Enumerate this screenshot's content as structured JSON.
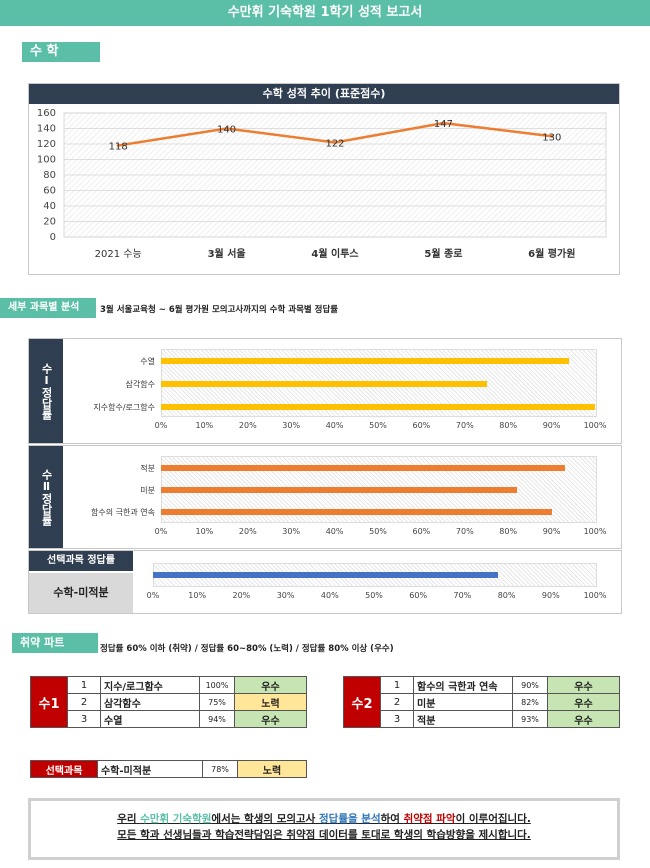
{
  "header": {
    "title": "수만휘 기숙학원 1학기 성적 보고서"
  },
  "math_tag": "수 학",
  "chart_data": {
    "type": "line",
    "title": "수학 성적 추이 (표준점수)",
    "categories": [
      "2021 수능",
      "3월 서울",
      "4월 이투스",
      "5월 종로",
      "6월 평가원"
    ],
    "values": [
      118,
      140,
      122,
      147,
      130
    ],
    "ylim": [
      0,
      160
    ],
    "yticks": [
      "0",
      "20",
      "40",
      "60",
      "80",
      "100",
      "120",
      "140",
      "160"
    ],
    "line_color": "#ed7d31",
    "grid": true
  },
  "detail": {
    "tag": "세부 과목별 분석",
    "desc": "3월 서울교육청 ~ 6월 평가원 모의고사까지의 수학 과목별 정답률",
    "pct_ticks": [
      "0%",
      "10%",
      "20%",
      "30%",
      "40%",
      "50%",
      "60%",
      "70%",
      "80%",
      "90%",
      "100%"
    ],
    "su1": {
      "label": "수Ⅰ정답률",
      "items": [
        {
          "name": "수열",
          "value": 94,
          "color": "#ffc000"
        },
        {
          "name": "삼각함수",
          "value": 75,
          "color": "#ffc000"
        },
        {
          "name": "지수함수/로그함수",
          "value": 100,
          "color": "#ffc000"
        }
      ]
    },
    "su2": {
      "label": "수Ⅱ정답률",
      "items": [
        {
          "name": "적분",
          "value": 93,
          "color": "#ed7d31"
        },
        {
          "name": "미분",
          "value": 82,
          "color": "#ed7d31"
        },
        {
          "name": "함수의 극한과 연속",
          "value": 90,
          "color": "#ed7d31"
        }
      ]
    },
    "elective": {
      "title": "선택과목 정답률",
      "name": "수학-미적분",
      "value": 78,
      "color": "#4472c4"
    }
  },
  "weak": {
    "tag": "취약 파트",
    "legend": "정답률 60% 이하 (취약) / 정답률 60~80% (노력) / 정답률 80% 이상 (우수)",
    "su1": {
      "label": "수1",
      "rows": [
        {
          "no": "1",
          "name": "지수/로그함수",
          "pct": "100%",
          "grade": "우수"
        },
        {
          "no": "2",
          "name": "삼각함수",
          "pct": "75%",
          "grade": "노력"
        },
        {
          "no": "3",
          "name": "수열",
          "pct": "94%",
          "grade": "우수"
        }
      ]
    },
    "su2": {
      "label": "수2",
      "rows": [
        {
          "no": "1",
          "name": "함수의 극한과 연속",
          "pct": "90%",
          "grade": "우수"
        },
        {
          "no": "2",
          "name": "미분",
          "pct": "82%",
          "grade": "우수"
        },
        {
          "no": "3",
          "name": "적분",
          "pct": "93%",
          "grade": "우수"
        }
      ]
    },
    "elective": {
      "label": "선택과목",
      "name": "수학-미적분",
      "pct": "78%",
      "grade": "노력"
    }
  },
  "footer": {
    "l1a": "우리 ",
    "l1b": "수만휘 기숙학원",
    "l1c": "에서는 학생의 모의고사 ",
    "l1d": "정답률을 분석",
    "l1e": "하여 ",
    "l1f": "취약점 파악",
    "l1g": "이 이루어집니다.",
    "line2": "모든 학과 선생님들과 학습전략담임은 취약점 데이터를 토대로 학생의 학습방향을 제시합니다.",
    "colors": {
      "academy": "#5bbfa8",
      "analysis": "#2e75b6",
      "weak": "#c00000"
    }
  }
}
